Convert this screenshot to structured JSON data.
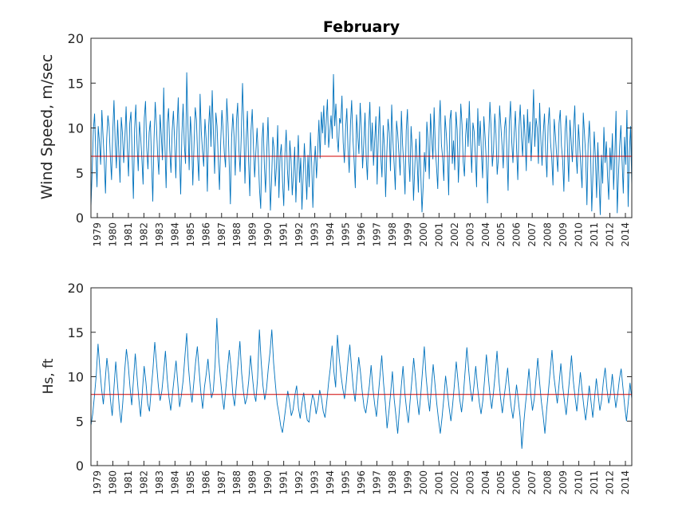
{
  "figure_title": "February",
  "colors": {
    "series": "#0072BD",
    "mean_line": "#D00000",
    "axis": "#262626"
  },
  "chart_data": [
    {
      "type": "line",
      "name": "wind-speed",
      "title": "February",
      "xlabel": "",
      "ylabel": "Wind Speed, m/sec",
      "ylim": [
        0,
        20
      ],
      "yticks": [
        0,
        5,
        10,
        15,
        20
      ],
      "xtick_labels": [
        "1979",
        "1980",
        "1981",
        "1982",
        "1983",
        "1984",
        "1985",
        "1986",
        "1987",
        "1988",
        "1989",
        "1990",
        "1991",
        "1992",
        "1993",
        "1994",
        "1995",
        "1996",
        "1997",
        "1998",
        "1999",
        "2000",
        "2001",
        "2002",
        "2003",
        "2004",
        "2005",
        "2006",
        "2007",
        "2008",
        "2009",
        "2010",
        "2011",
        "2012",
        "2014"
      ],
      "grid": false,
      "mean_line": 6.85,
      "series": [
        {
          "values": [
            1.2,
            5.1,
            9.8,
            11.6,
            7.2,
            3.4,
            10.2,
            8.5,
            5.9,
            12.0,
            9.1,
            6.3,
            2.7,
            8.8,
            11.4,
            10.1,
            6.8,
            4.2,
            9.6,
            13.1,
            8.4,
            5.5,
            10.9,
            7.3,
            3.9,
            11.2,
            9.4,
            6.1,
            8.9,
            12.4,
            7.7,
            4.6,
            10.5,
            11.8,
            6.9,
            2.1,
            9.9,
            12.6,
            8.3,
            5.2,
            10.7,
            9.0,
            6.6,
            3.7,
            11.1,
            13.0,
            7.8,
            5.4,
            9.5,
            10.8,
            6.2,
            1.8,
            8.7,
            12.9,
            10.3,
            7.0,
            4.8,
            11.5,
            9.2,
            6.4,
            14.5,
            8.0,
            3.3,
            10.6,
            12.2,
            7.5,
            5.0,
            9.7,
            11.9,
            8.6,
            4.4,
            10.0,
            13.4,
            7.1,
            2.6,
            9.3,
            12.7,
            8.2,
            6.0,
            16.2,
            10.4,
            5.3,
            11.3,
            9.0,
            3.6,
            8.1,
            12.3,
            10.9,
            6.7,
            4.1,
            13.8,
            9.6,
            7.4,
            5.7,
            11.0,
            8.8,
            2.9,
            10.1,
            12.5,
            7.9,
            14.2,
            9.4,
            4.9,
            11.7,
            10.2,
            6.5,
            3.1,
            8.4,
            12.0,
            9.8,
            7.2,
            5.6,
            13.3,
            10.5,
            6.0,
            1.5,
            8.9,
            11.6,
            9.1,
            4.7,
            10.8,
            12.8,
            7.6,
            5.1,
            9.3,
            15.0,
            10.4,
            3.8,
            8.7,
            11.9,
            6.3,
            2.4,
            9.7,
            12.1,
            8.0,
            4.5,
            7.3,
            10.0,
            6.8,
            3.2,
            1.0,
            8.5,
            10.6,
            5.9,
            2.8,
            7.4,
            11.2,
            6.1,
            0.8,
            4.3,
            9.0,
            7.7,
            3.5,
            5.8,
            10.3,
            2.2,
            6.9,
            8.2,
            4.0,
            1.3,
            7.1,
            9.8,
            5.4,
            3.0,
            8.6,
            6.5,
            2.5,
            4.8,
            7.9,
            1.7,
            5.6,
            9.2,
            3.9,
            6.7,
            0.9,
            4.6,
            8.3,
            5.3,
            2.0,
            7.0,
            3.4,
            9.5,
            6.2,
            1.1,
            5.7,
            8.0,
            4.4,
            7.5,
            10.9,
            6.6,
            11.8,
            9.4,
            12.5,
            8.1,
            10.7,
            13.2,
            7.8,
            9.6,
            11.4,
            8.8,
            16.0,
            10.2,
            12.7,
            9.0,
            7.3,
            11.1,
            10.5,
            13.6,
            8.4,
            6.1,
            9.9,
            12.2,
            7.6,
            5.0,
            10.4,
            13.1,
            8.9,
            6.4,
            3.3,
            11.5,
            9.2,
            7.1,
            12.8,
            10.0,
            5.5,
            8.3,
            11.7,
            6.7,
            4.2,
            9.8,
            12.9,
            7.4,
            10.6,
            5.8,
            8.6,
            11.3,
            3.7,
            9.1,
            12.4,
            6.9,
            4.5,
            10.3,
            8.0,
            2.3,
            7.2,
            11.0,
            9.5,
            5.2,
            12.6,
            8.7,
            6.0,
            3.1,
            10.8,
            9.3,
            7.0,
            4.7,
            11.9,
            8.1,
            5.9,
            2.6,
            9.7,
            12.1,
            6.8,
            4.0,
            10.2,
            7.6,
            1.9,
            5.4,
            8.8,
            6.3,
            2.8,
            9.6,
            4.9,
            0.6,
            3.6,
            7.3,
            5.1,
            10.7,
            8.5,
            4.3,
            11.6,
            9.0,
            6.5,
            12.3,
            7.8,
            5.6,
            3.2,
            10.1,
            13.1,
            8.2,
            6.7,
            4.1,
            11.4,
            9.4,
            7.1,
            2.5,
            10.9,
            12.0,
            6.0,
            8.6,
            5.3,
            11.8,
            9.8,
            3.9,
            7.5,
            12.7,
            10.4,
            6.2,
            4.6,
            9.2,
            11.1,
            7.9,
            13.0,
            8.4,
            5.0,
            10.6,
            9.6,
            6.9,
            3.4,
            12.2,
            8.0,
            10.8,
            7.2,
            4.4,
            11.3,
            9.1,
            6.4,
            1.6,
            8.8,
            12.9,
            10.0,
            5.7,
            7.6,
            11.6,
            9.3,
            4.8,
            6.6,
            12.5,
            10.3,
            8.1,
            5.5,
            9.9,
            11.2,
            7.4,
            3.0,
            10.6,
            13.0,
            8.5,
            6.1,
            9.4,
            11.9,
            7.7,
            4.2,
            10.1,
            12.6,
            8.9,
            6.8,
            11.5,
            9.0,
            5.2,
            12.1,
            8.3,
            10.7,
            6.3,
            9.6,
            14.3,
            7.9,
            11.1,
            10.0,
            6.0,
            12.8,
            8.7,
            5.8,
            9.5,
            11.6,
            7.3,
            4.5,
            10.2,
            12.3,
            8.4,
            6.6,
            3.6,
            11.0,
            9.2,
            7.0,
            5.1,
            10.5,
            12.0,
            8.0,
            6.4,
            2.9,
            9.7,
            11.4,
            7.6,
            4.0,
            10.9,
            8.6,
            6.2,
            9.9,
            12.5,
            7.2,
            4.9,
            10.4,
            8.1,
            5.6,
            3.3,
            11.7,
            9.3,
            6.9,
            1.4,
            8.2,
            10.8,
            7.5,
            0.7,
            5.0,
            9.6,
            6.7,
            2.2,
            8.4,
            4.3,
            0.3,
            7.0,
            3.8,
            10.1,
            6.1,
            8.5,
            4.6,
            2.0,
            7.8,
            5.3,
            9.4,
            3.1,
            6.8,
            11.9,
            0.5,
            4.7,
            8.0,
            10.3,
            6.3,
            2.7,
            9.0,
            5.9,
            12.0,
            1.2,
            7.4,
            10.2,
            3.5
          ]
        },
        {
          "values": []
        }
      ]
    },
    {
      "type": "line",
      "name": "significant-wave-height",
      "title": "",
      "xlabel": "",
      "ylabel": "Hs, ft",
      "ylim": [
        0,
        20
      ],
      "yticks": [
        0,
        5,
        10,
        15,
        20
      ],
      "xtick_labels": [
        "1979",
        "1980",
        "1981",
        "1982",
        "1983",
        "1984",
        "1985",
        "1986",
        "1987",
        "1988",
        "1989",
        "1990",
        "1991",
        "1992",
        "1993",
        "1994",
        "1995",
        "1996",
        "1997",
        "1998",
        "1999",
        "2000",
        "2001",
        "2002",
        "2003",
        "2004",
        "2005",
        "2006",
        "2007",
        "2008",
        "2009",
        "2010",
        "2011",
        "2012",
        "2014"
      ],
      "grid": false,
      "mean_line": 8.0,
      "series": [
        {
          "values": [
            4.5,
            5.8,
            7.9,
            10.2,
            13.7,
            11.0,
            8.6,
            6.9,
            9.5,
            12.1,
            10.3,
            7.4,
            5.6,
            8.8,
            11.7,
            9.1,
            6.5,
            4.8,
            7.2,
            10.6,
            13.1,
            11.4,
            8.9,
            6.8,
            9.7,
            12.6,
            10.0,
            7.5,
            5.5,
            8.3,
            11.2,
            9.4,
            7.0,
            6.1,
            8.6,
            10.9,
            13.9,
            11.5,
            9.0,
            7.3,
            8.4,
            10.5,
            12.9,
            9.8,
            7.7,
            6.2,
            8.1,
            10.0,
            11.8,
            9.2,
            6.6,
            7.9,
            9.6,
            12.3,
            14.9,
            11.1,
            8.7,
            7.1,
            9.3,
            11.6,
            13.4,
            10.7,
            8.2,
            6.4,
            8.8,
            10.3,
            12.0,
            9.5,
            7.6,
            8.4,
            11.3,
            16.6,
            12.2,
            9.9,
            7.8,
            6.3,
            8.5,
            10.8,
            13.0,
            11.0,
            8.0,
            6.7,
            9.1,
            11.5,
            14.0,
            10.4,
            8.3,
            6.9,
            7.7,
            9.6,
            12.4,
            10.1,
            8.1,
            7.2,
            9.9,
            15.3,
            11.7,
            9.0,
            7.4,
            8.6,
            10.9,
            12.8,
            15.3,
            11.6,
            9.2,
            7.0,
            5.9,
            4.5,
            3.7,
            5.2,
            6.8,
            8.4,
            7.1,
            5.6,
            6.3,
            7.9,
            9.0,
            6.5,
            5.3,
            7.0,
            8.2,
            6.4,
            5.1,
            4.9,
            6.7,
            8.0,
            7.3,
            5.8,
            6.9,
            8.5,
            7.6,
            6.1,
            5.4,
            7.2,
            9.3,
            11.0,
            13.5,
            10.6,
            8.8,
            14.7,
            12.1,
            10.2,
            8.7,
            7.5,
            9.4,
            11.8,
            13.6,
            10.9,
            8.6,
            7.2,
            9.8,
            12.2,
            10.5,
            8.3,
            6.6,
            5.9,
            7.4,
            9.0,
            11.3,
            8.7,
            6.9,
            5.5,
            7.8,
            10.1,
            12.4,
            9.3,
            7.1,
            4.2,
            6.0,
            8.1,
            10.6,
            7.5,
            5.6,
            3.6,
            6.4,
            8.9,
            11.2,
            8.2,
            6.3,
            4.8,
            7.3,
            9.6,
            12.1,
            9.9,
            7.5,
            5.7,
            8.0,
            10.7,
            13.4,
            10.0,
            7.8,
            6.1,
            8.8,
            11.4,
            9.2,
            7.0,
            5.2,
            3.6,
            5.4,
            7.6,
            10.1,
            8.3,
            6.5,
            5.0,
            6.9,
            9.2,
            11.7,
            9.5,
            7.4,
            6.0,
            7.9,
            10.6,
            13.3,
            10.8,
            8.6,
            7.2,
            9.0,
            11.2,
            8.9,
            7.1,
            5.8,
            7.3,
            9.7,
            12.5,
            10.2,
            8.0,
            6.4,
            8.2,
            10.4,
            12.9,
            9.7,
            7.6,
            5.9,
            7.7,
            9.3,
            11.0,
            8.4,
            6.6,
            5.3,
            7.0,
            9.1,
            7.4,
            5.5,
            1.9,
            4.6,
            6.8,
            8.7,
            10.9,
            8.1,
            6.2,
            7.5,
            9.8,
            12.1,
            9.4,
            7.2,
            5.6,
            3.6,
            6.3,
            8.4,
            10.7,
            13.0,
            10.2,
            8.5,
            7.0,
            9.2,
            11.5,
            9.0,
            7.3,
            5.7,
            7.8,
            10.0,
            12.4,
            9.6,
            7.7,
            6.1,
            8.3,
            10.5,
            8.4,
            6.6,
            5.1,
            6.9,
            9.0,
            7.2,
            5.4,
            7.6,
            9.8,
            8.0,
            6.2,
            7.4,
            9.5,
            11.0,
            8.6,
            7.0,
            8.1,
            10.3,
            8.3,
            6.5,
            7.9,
            9.7,
            10.9,
            8.8,
            6.7,
            5.0,
            7.1,
            9.3,
            7.5
          ]
        },
        {
          "values": []
        }
      ]
    }
  ],
  "labels": {
    "top_ylabel": "Wind Speed, m/sec",
    "bottom_ylabel": "Hs, ft"
  }
}
